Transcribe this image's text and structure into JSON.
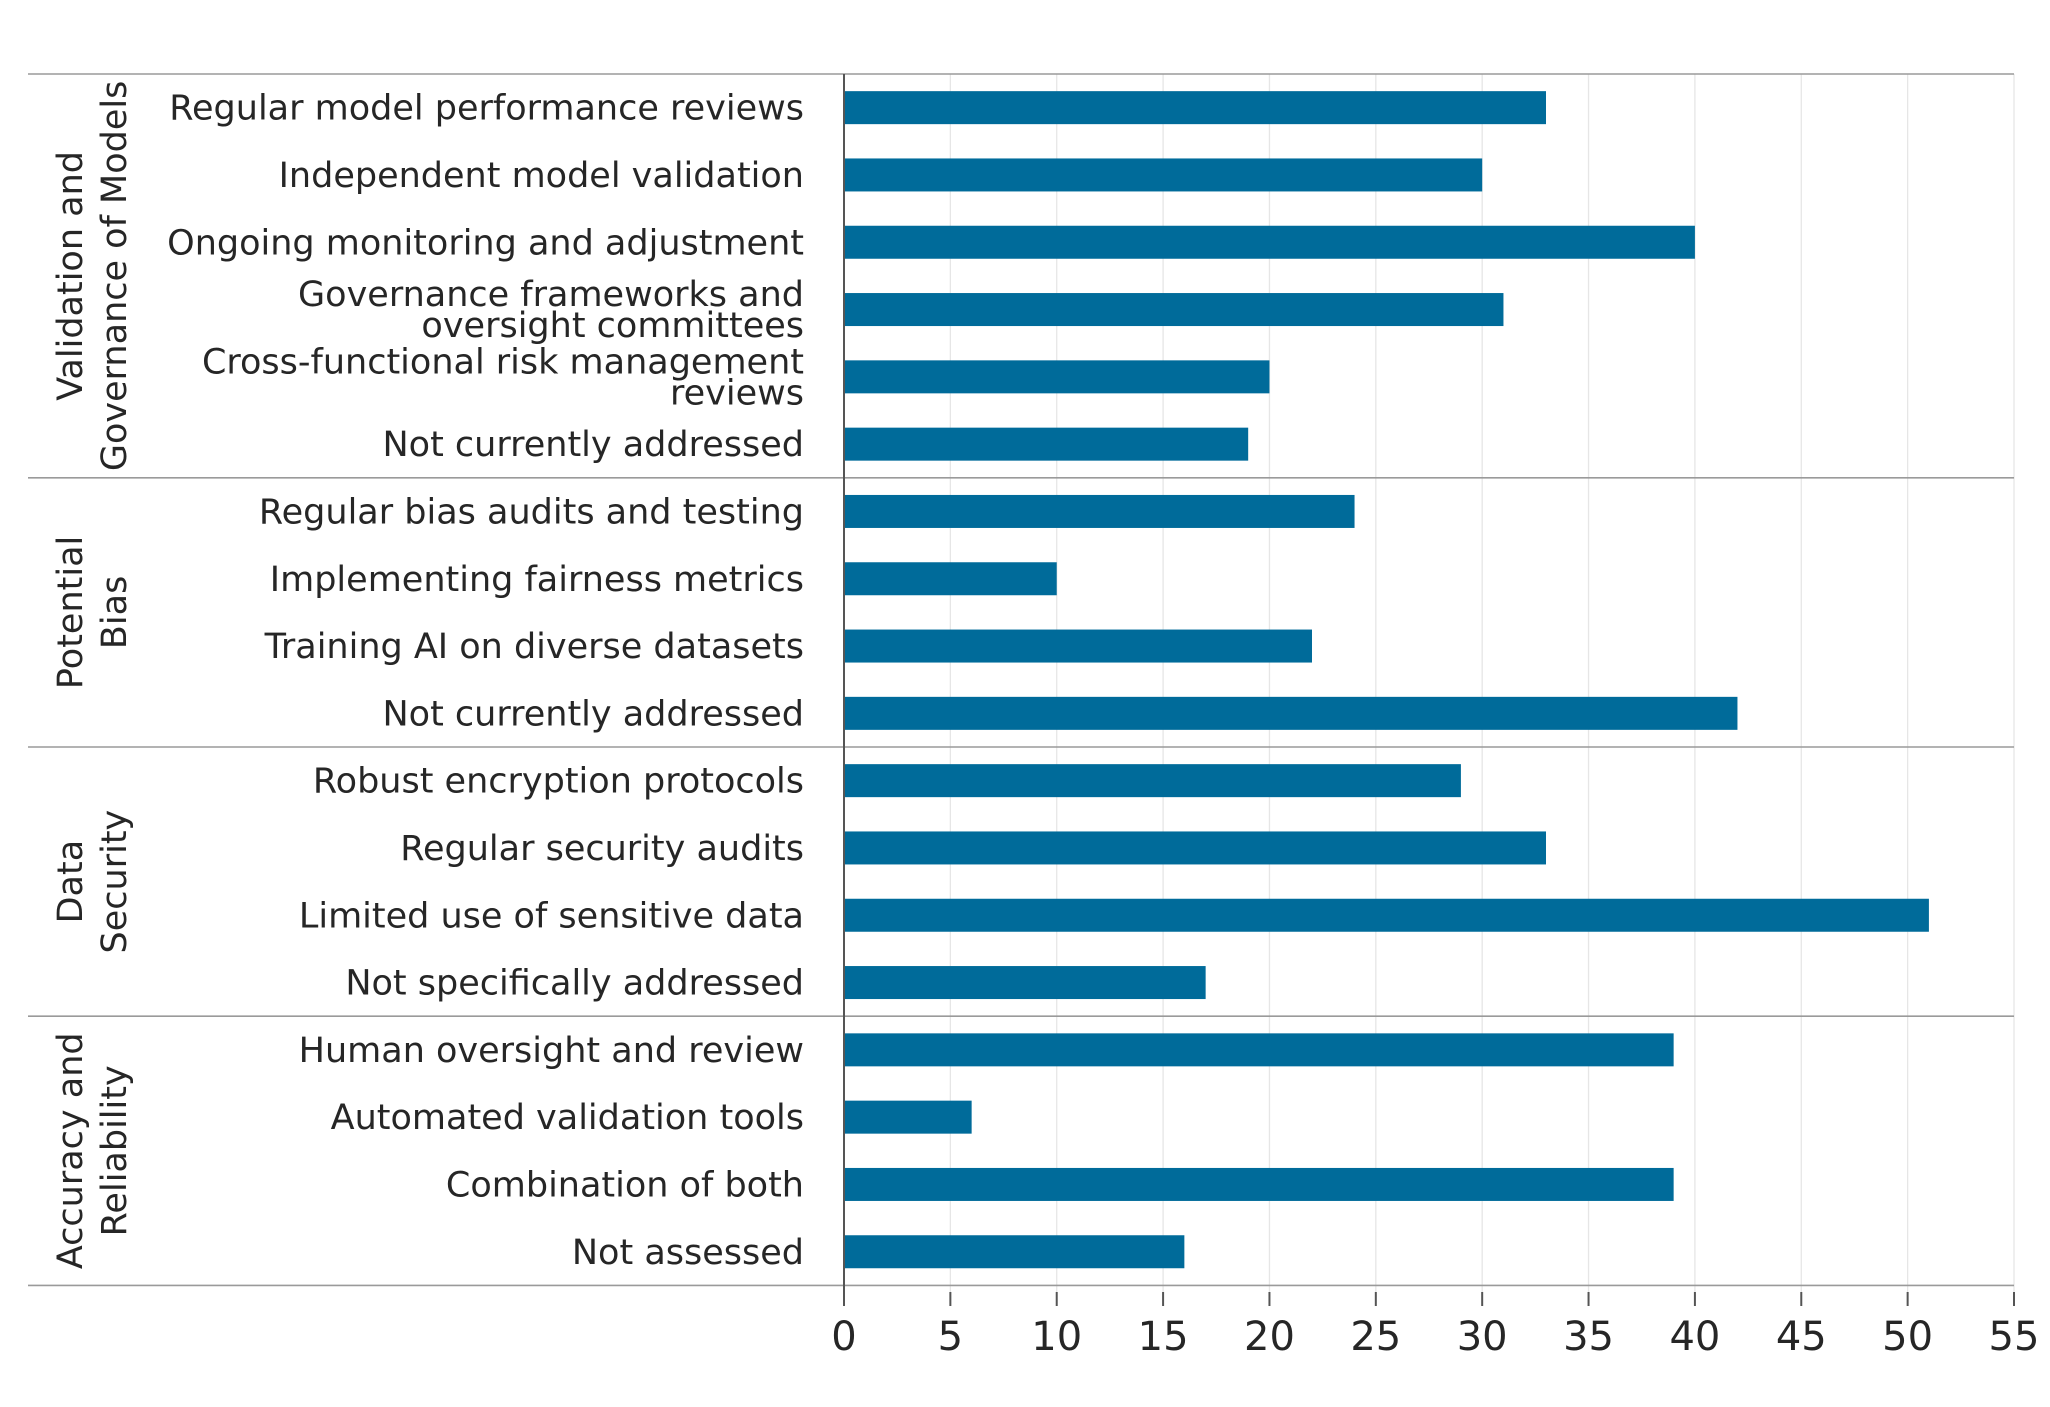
{
  "chart_data": {
    "type": "bar",
    "orientation": "horizontal",
    "bar_color": "#006b9a",
    "title": "",
    "xlabel": "",
    "ylabel": "",
    "xlim": [
      0,
      55
    ],
    "xticks": [
      0,
      5,
      10,
      15,
      20,
      25,
      30,
      35,
      40,
      45,
      50,
      55
    ],
    "grid": true,
    "groups": [
      {
        "name": "Validation and Governance of Models",
        "name_lines": [
          "Validation and",
          "Governance of Models"
        ],
        "items": [
          {
            "label": "Regular model performance reviews",
            "value": 33
          },
          {
            "label": "Independent model validation",
            "value": 30
          },
          {
            "label": "Ongoing monitoring and adjustment",
            "value": 40
          },
          {
            "label": "Governance frameworks and oversight committees",
            "label_lines": [
              "Governance frameworks and",
              "oversight committees"
            ],
            "value": 31
          },
          {
            "label": "Cross-functional risk management reviews",
            "label_lines": [
              "Cross-functional risk management",
              "reviews"
            ],
            "value": 20
          },
          {
            "label": "Not currently addressed",
            "value": 19
          }
        ]
      },
      {
        "name": "Potential Bias",
        "name_lines": [
          "Potential",
          "Bias"
        ],
        "items": [
          {
            "label": "Regular bias audits and testing",
            "value": 24
          },
          {
            "label": "Implementing fairness metrics",
            "value": 10
          },
          {
            "label": "Training AI on diverse datasets",
            "value": 22
          },
          {
            "label": "Not currently addressed",
            "value": 42
          }
        ]
      },
      {
        "name": "Data Security",
        "name_lines": [
          "Data",
          "Security"
        ],
        "items": [
          {
            "label": "Robust encryption protocols",
            "value": 29
          },
          {
            "label": "Regular security audits",
            "value": 33
          },
          {
            "label": "Limited use of sensitive data",
            "value": 51
          },
          {
            "label": "Not specifically addressed",
            "value": 17
          }
        ]
      },
      {
        "name": "Accuracy and Reliability",
        "name_lines": [
          "Accuracy and",
          "Reliability"
        ],
        "items": [
          {
            "label": "Human oversight and review",
            "value": 39
          },
          {
            "label": "Automated validation tools",
            "value": 6
          },
          {
            "label": "Combination of both",
            "value": 39
          },
          {
            "label": "Not assessed",
            "value": 16
          }
        ]
      }
    ]
  }
}
